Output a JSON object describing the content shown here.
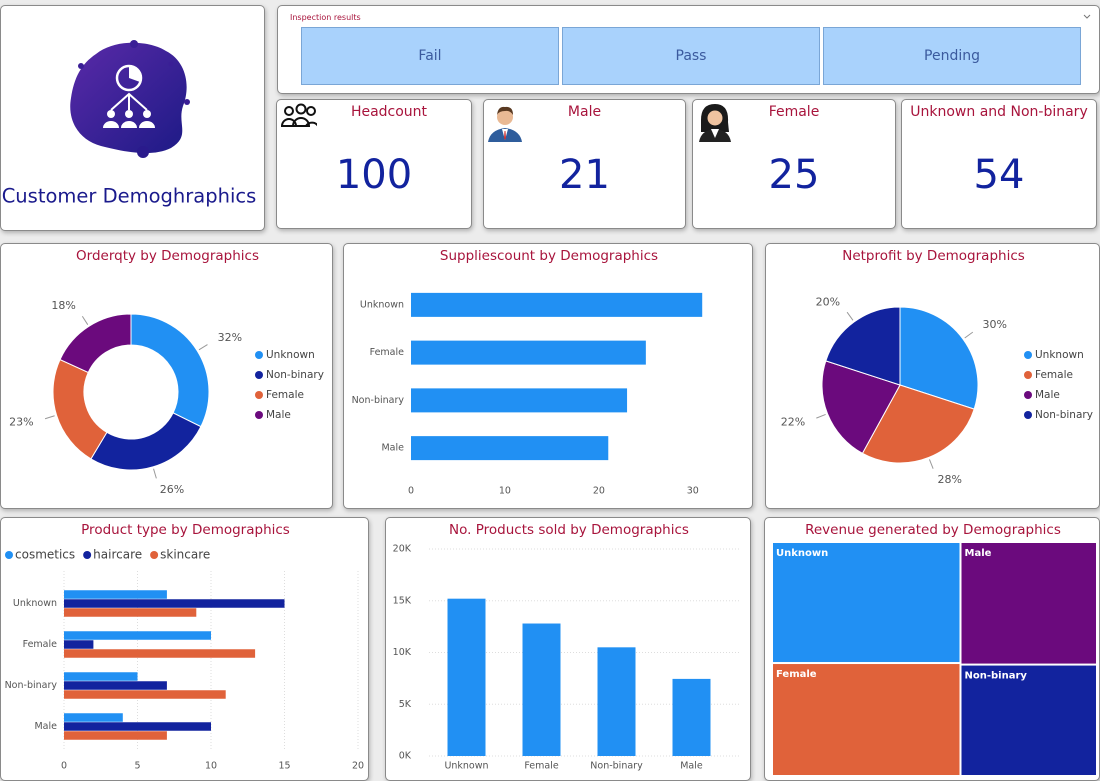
{
  "header": {
    "title": "Customer Demoghraphics"
  },
  "slicer": {
    "title": "Inspection results",
    "options": [
      "Fail",
      "Pass",
      "Pending"
    ]
  },
  "cards": [
    {
      "label": "Headcount",
      "value": 100
    },
    {
      "label": "Male",
      "value": 21
    },
    {
      "label": "Female",
      "value": 25
    },
    {
      "label": "Unknown and Non-binary",
      "value": 54
    }
  ],
  "chart_data": [
    {
      "type": "donut",
      "title": "Orderqty by Demographics",
      "categories": [
        "Unknown",
        "Non-binary",
        "Female",
        "Male"
      ],
      "values": [
        32,
        26,
        23,
        18
      ],
      "value_labels": [
        "32%",
        "26%",
        "23%",
        "18%"
      ],
      "colors": [
        "#2190f3",
        "#12239e",
        "#e0623a",
        "#6b0a7d"
      ],
      "legend": "right"
    },
    {
      "type": "bar",
      "orientation": "horizontal",
      "title": "Suppliescount by Demographics",
      "categories": [
        "Unknown",
        "Female",
        "Non-binary",
        "Male"
      ],
      "values": [
        31,
        25,
        23,
        21
      ],
      "color": "#2190f3",
      "xlim": [
        0,
        33
      ],
      "xticks": [
        0,
        10,
        20,
        30
      ],
      "grid": false
    },
    {
      "type": "pie",
      "title": "Netprofit by Demographics",
      "categories": [
        "Unknown",
        "Female",
        "Male",
        "Non-binary"
      ],
      "values": [
        30,
        28,
        22,
        20
      ],
      "value_labels": [
        "30%",
        "28%",
        "22%",
        "20%"
      ],
      "colors": [
        "#2190f3",
        "#e0623a",
        "#6b0a7d",
        "#12239e"
      ],
      "legend": "right"
    },
    {
      "type": "bar",
      "orientation": "horizontal",
      "title": "Product type by Demographics",
      "categories": [
        "Unknown",
        "Female",
        "Non-binary",
        "Male"
      ],
      "series": [
        {
          "name": "cosmetics",
          "color": "#2190f3",
          "values": [
            7,
            10,
            5,
            4
          ]
        },
        {
          "name": "haircare",
          "color": "#12239e",
          "values": [
            15,
            2,
            7,
            10
          ]
        },
        {
          "name": "skincare",
          "color": "#e0623a",
          "values": [
            9,
            13,
            11,
            7
          ]
        }
      ],
      "xlim": [
        0,
        20
      ],
      "xticks": [
        0,
        5,
        10,
        15,
        20
      ],
      "grid": true,
      "legend": "top-left"
    },
    {
      "type": "bar",
      "orientation": "vertical",
      "title": "No. Products sold by Demographics",
      "categories": [
        "Unknown",
        "Female",
        "Non-binary",
        "Male"
      ],
      "values": [
        15200,
        12800,
        10500,
        7450
      ],
      "color": "#2190f3",
      "ylim": [
        0,
        20000
      ],
      "yticks": [
        {
          "value": 0,
          "label": "0K"
        },
        {
          "value": 5000,
          "label": "5K"
        },
        {
          "value": 10000,
          "label": "10K"
        },
        {
          "value": 15000,
          "label": "15K"
        },
        {
          "value": 20000,
          "label": "20K"
        }
      ],
      "grid": true
    },
    {
      "type": "treemap",
      "title": "Revenue generated by Demographics",
      "categories": [
        "Unknown",
        "Female",
        "Male",
        "Non-binary"
      ],
      "values": [
        30,
        28,
        22,
        20
      ],
      "colors": [
        "#2190f3",
        "#e0623a",
        "#6b0a7d",
        "#12239e"
      ]
    }
  ]
}
